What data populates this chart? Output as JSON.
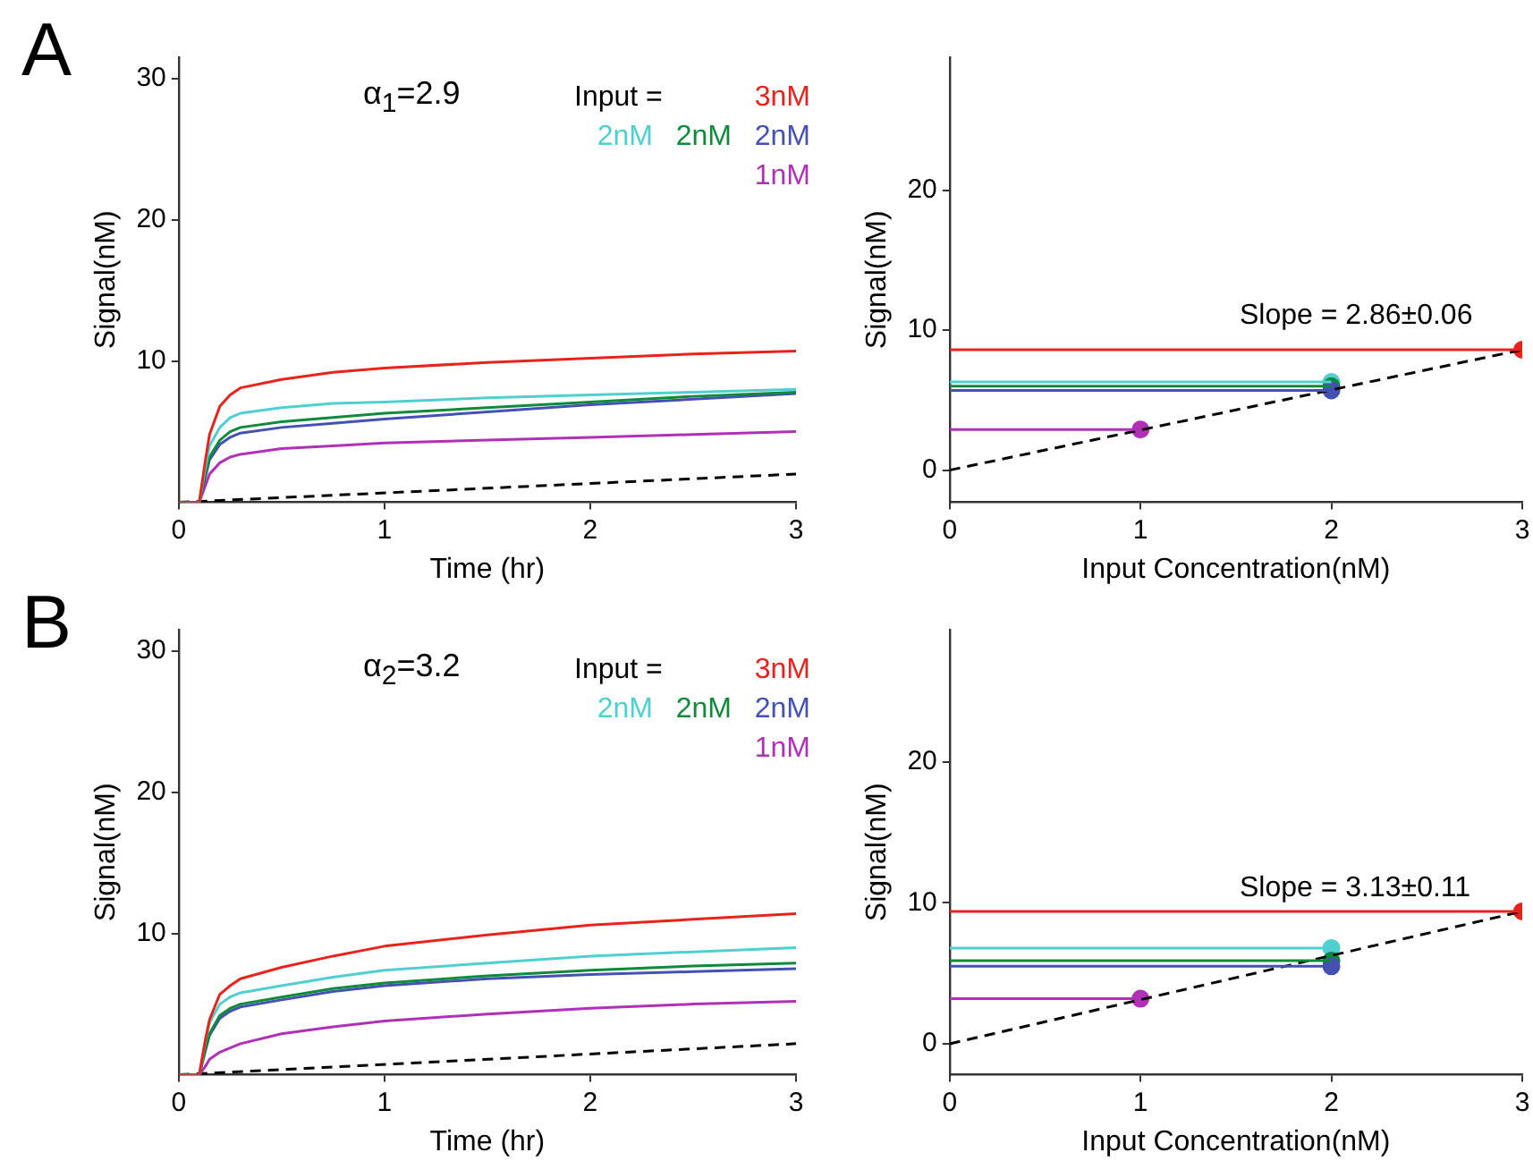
{
  "chart_data": [
    {
      "type": "line",
      "annotations": [
        "A",
        "α$_{1}$=2.9"
      ],
      "legend_title": "Input =",
      "legend": "top right",
      "xlabel": "Time (hr)",
      "ylabel": "Signal(nM)",
      "xlim": [
        0,
        3
      ],
      "xticks": [
        0,
        1,
        2,
        3
      ],
      "ylim": [
        0,
        31.5
      ],
      "yticks": [
        10,
        20,
        30
      ],
      "marker": "none",
      "series": [
        {
          "name": "3nM",
          "color": "#e8231c",
          "x": [
            0,
            0.1,
            0.13,
            0.15,
            0.2,
            0.25,
            0.3,
            0.5,
            0.75,
            1,
            1.5,
            2,
            2.5,
            3
          ],
          "values": [
            0,
            0,
            3,
            4.8,
            6.8,
            7.6,
            8.1,
            8.7,
            9.2,
            9.5,
            9.9,
            10.2,
            10.5,
            10.7
          ]
        },
        {
          "name": "2nM",
          "color": "#4fcfcf",
          "x": [
            0,
            0.1,
            0.13,
            0.15,
            0.2,
            0.25,
            0.3,
            0.5,
            0.75,
            1,
            1.5,
            2,
            2.5,
            3
          ],
          "values": [
            0,
            0,
            2.5,
            4,
            5.3,
            6.0,
            6.3,
            6.7,
            7.0,
            7.1,
            7.4,
            7.6,
            7.8,
            8.0
          ]
        },
        {
          "name": "2nM",
          "color": "#0e8a3a",
          "x": [
            0,
            0.1,
            0.13,
            0.15,
            0.2,
            0.25,
            0.3,
            0.5,
            0.75,
            1,
            1.5,
            2,
            2.5,
            3
          ],
          "values": [
            0,
            0,
            2,
            3.2,
            4.4,
            5.0,
            5.3,
            5.7,
            6.0,
            6.3,
            6.7,
            7.1,
            7.5,
            7.8
          ]
        },
        {
          "name": "2nM",
          "color": "#4450b4",
          "x": [
            0,
            0.1,
            0.13,
            0.15,
            0.2,
            0.25,
            0.3,
            0.5,
            0.75,
            1,
            1.5,
            2,
            2.5,
            3
          ],
          "values": [
            0,
            0,
            1.8,
            3,
            4.1,
            4.6,
            4.9,
            5.3,
            5.6,
            5.9,
            6.4,
            6.9,
            7.3,
            7.7
          ]
        },
        {
          "name": "1nM",
          "color": "#b030b8",
          "x": [
            0,
            0.1,
            0.13,
            0.15,
            0.2,
            0.25,
            0.3,
            0.5,
            0.75,
            1,
            1.5,
            2,
            2.5,
            3
          ],
          "values": [
            0,
            0,
            1.2,
            2.0,
            2.8,
            3.2,
            3.4,
            3.8,
            4.0,
            4.2,
            4.4,
            4.6,
            4.8,
            5.0
          ]
        },
        {
          "color": "#000000",
          "line_style": "dashed",
          "x": [
            0,
            3
          ],
          "values": [
            0,
            2.0
          ]
        }
      ]
    },
    {
      "type": "scatter",
      "annotations": [
        "Slope = 2.86±0.06"
      ],
      "xlabel": "Input Concentration(nM)",
      "ylabel": "Signal(nM)",
      "xlim": [
        0,
        3
      ],
      "xticks": [
        0,
        1,
        2,
        3
      ],
      "ylim": [
        -2.3,
        29.5
      ],
      "yticks": [
        0,
        10,
        20
      ],
      "series": [
        {
          "type": "line",
          "marker": "none",
          "color": "#e8231c",
          "x": [
            0,
            3
          ],
          "values": [
            8.6,
            8.6
          ]
        },
        {
          "type": "line",
          "marker": "none",
          "color": "#4fcfcf",
          "x": [
            0,
            2
          ],
          "values": [
            6.3,
            6.3
          ]
        },
        {
          "type": "line",
          "marker": "none",
          "color": "#0e8a3a",
          "x": [
            0,
            2
          ],
          "values": [
            6.0,
            6.0
          ]
        },
        {
          "type": "line",
          "marker": "none",
          "color": "#4450b4",
          "x": [
            0,
            2
          ],
          "values": [
            5.7,
            5.7
          ]
        },
        {
          "type": "line",
          "marker": "none",
          "color": "#b030b8",
          "x": [
            0,
            1
          ],
          "values": [
            2.9,
            2.9
          ]
        },
        {
          "type": "line",
          "marker": "none",
          "color": "#000000",
          "line_style": "dashed",
          "x": [
            0,
            3
          ],
          "values": [
            0,
            8.6
          ]
        },
        {
          "type": "scatter",
          "marker": "circle",
          "colors": [
            "#b030b8",
            "#4fcfcf",
            "#0e8a3a",
            "#4450b4",
            "#e8231c"
          ],
          "x": [
            1,
            2,
            2,
            2,
            3
          ],
          "values": [
            2.9,
            6.3,
            6.0,
            5.7,
            8.6
          ]
        }
      ]
    },
    {
      "type": "line",
      "annotations": [
        "B",
        "α$_{2}$=3.2"
      ],
      "legend_title": "Input =",
      "legend": "top right",
      "xlabel": "Time (hr)",
      "ylabel": "Signal(nM)",
      "xlim": [
        0,
        3
      ],
      "xticks": [
        0,
        1,
        2,
        3
      ],
      "ylim": [
        0,
        31.5
      ],
      "yticks": [
        10,
        20,
        30
      ],
      "marker": "none",
      "series": [
        {
          "name": "3nM",
          "color": "#e8231c",
          "x": [
            0,
            0.1,
            0.13,
            0.15,
            0.2,
            0.25,
            0.3,
            0.5,
            0.75,
            1,
            1.5,
            2,
            2.5,
            3
          ],
          "values": [
            0,
            0,
            2.5,
            3.9,
            5.7,
            6.3,
            6.8,
            7.6,
            8.4,
            9.1,
            9.9,
            10.6,
            11.0,
            11.4
          ]
        },
        {
          "name": "2nM",
          "color": "#4fcfcf",
          "x": [
            0,
            0.1,
            0.13,
            0.15,
            0.2,
            0.25,
            0.3,
            0.5,
            0.75,
            1,
            1.5,
            2,
            2.5,
            3
          ],
          "values": [
            0,
            0,
            2.4,
            3.7,
            5.0,
            5.5,
            5.8,
            6.3,
            6.9,
            7.4,
            7.9,
            8.4,
            8.7,
            9.0
          ]
        },
        {
          "name": "2nM",
          "color": "#0e8a3a",
          "x": [
            0,
            0.1,
            0.13,
            0.15,
            0.2,
            0.25,
            0.3,
            0.5,
            0.75,
            1,
            1.5,
            2,
            2.5,
            3
          ],
          "values": [
            0,
            0,
            1.8,
            2.9,
            4.2,
            4.7,
            5.0,
            5.5,
            6.1,
            6.5,
            7.0,
            7.4,
            7.7,
            7.9
          ]
        },
        {
          "name": "2nM",
          "color": "#4450b4",
          "x": [
            0,
            0.1,
            0.13,
            0.15,
            0.2,
            0.25,
            0.3,
            0.5,
            0.75,
            1,
            1.5,
            2,
            2.5,
            3
          ],
          "values": [
            0,
            0,
            1.7,
            2.8,
            4.0,
            4.5,
            4.8,
            5.3,
            5.9,
            6.3,
            6.8,
            7.1,
            7.3,
            7.5
          ]
        },
        {
          "name": "1nM",
          "color": "#b030b8",
          "x": [
            0,
            0.1,
            0.13,
            0.15,
            0.2,
            0.25,
            0.3,
            0.5,
            0.75,
            1,
            1.5,
            2,
            2.5,
            3
          ],
          "values": [
            0,
            0,
            0.6,
            1.1,
            1.6,
            1.9,
            2.2,
            2.9,
            3.4,
            3.8,
            4.3,
            4.7,
            5.0,
            5.2
          ]
        },
        {
          "color": "#000000",
          "line_style": "dashed",
          "x": [
            0,
            3
          ],
          "values": [
            0,
            2.2
          ]
        }
      ]
    },
    {
      "type": "scatter",
      "annotations": [
        "Slope = 3.13±0.11"
      ],
      "xlabel": "Input Concentration(nM)",
      "ylabel": "Signal(nM)",
      "xlim": [
        0,
        3
      ],
      "xticks": [
        0,
        1,
        2,
        3
      ],
      "ylim": [
        -2.2,
        29.4
      ],
      "yticks": [
        0,
        10,
        20
      ],
      "series": [
        {
          "type": "line",
          "marker": "none",
          "color": "#e8231c",
          "x": [
            0,
            3
          ],
          "values": [
            9.4,
            9.4
          ]
        },
        {
          "type": "line",
          "marker": "none",
          "color": "#4fcfcf",
          "x": [
            0,
            2
          ],
          "values": [
            6.8,
            6.8
          ]
        },
        {
          "type": "line",
          "marker": "none",
          "color": "#0e8a3a",
          "x": [
            0,
            2
          ],
          "values": [
            5.9,
            5.9
          ]
        },
        {
          "type": "line",
          "marker": "none",
          "color": "#4450b4",
          "x": [
            0,
            2
          ],
          "values": [
            5.5,
            5.5
          ]
        },
        {
          "type": "line",
          "marker": "none",
          "color": "#b030b8",
          "x": [
            0,
            1
          ],
          "values": [
            3.2,
            3.2
          ]
        },
        {
          "type": "line",
          "marker": "none",
          "color": "#000000",
          "line_style": "dashed",
          "x": [
            0,
            3
          ],
          "values": [
            0,
            9.4
          ]
        },
        {
          "type": "scatter",
          "marker": "circle",
          "colors": [
            "#b030b8",
            "#4fcfcf",
            "#0e8a3a",
            "#4450b4",
            "#e8231c"
          ],
          "x": [
            1,
            2,
            2,
            2,
            3
          ],
          "values": [
            3.2,
            6.8,
            5.9,
            5.5,
            9.4
          ]
        }
      ]
    }
  ]
}
